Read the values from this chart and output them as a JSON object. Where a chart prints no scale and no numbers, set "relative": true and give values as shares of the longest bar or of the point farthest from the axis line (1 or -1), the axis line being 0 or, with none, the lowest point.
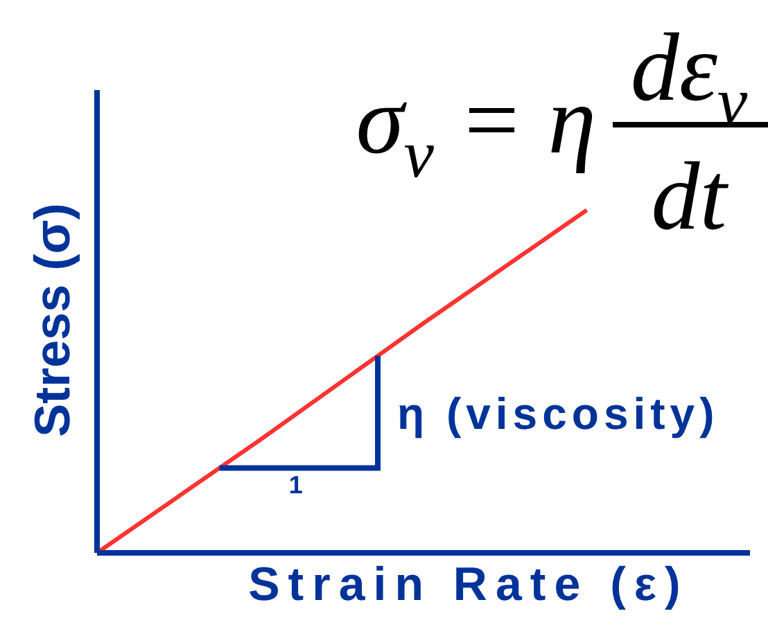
{
  "chart_data": {
    "type": "line",
    "xlabel": "Strain Rate (ε)",
    "ylabel": "Stress (σ)",
    "annotations": [
      "σ$_{v}$ = η",
      "dε$_{v}$",
      "dt",
      "1",
      "η (viscosity)"
    ],
    "categories": [
      null,
      null,
      null,
      null,
      null
    ],
    "relative": true,
    "series": [
      {
        "color": "#ff3333",
        "values": [
          0,
          0.33,
          0.67,
          1,
          null
        ]
      }
    ],
    "marker": "none",
    "line_style": "solid"
  }
}
